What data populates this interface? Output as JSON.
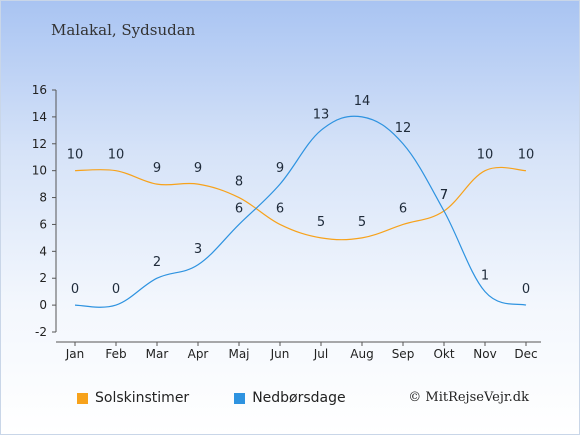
{
  "title": "Malakal, Sydsudan",
  "copyright": "© MitRejseVejr.dk",
  "chart_data": {
    "type": "line",
    "categories": [
      "Jan",
      "Feb",
      "Mar",
      "Apr",
      "Maj",
      "Jun",
      "Jul",
      "Aug",
      "Sep",
      "Okt",
      "Nov",
      "Dec"
    ],
    "ylim": [
      -2,
      16
    ],
    "yticks": [
      -2,
      0,
      2,
      4,
      6,
      8,
      10,
      12,
      14,
      16
    ],
    "series": [
      {
        "name": "Solskinstimer",
        "color": "#f7a21b",
        "values": [
          10,
          10,
          9,
          9,
          8,
          6,
          5,
          5,
          6,
          7,
          10,
          10
        ]
      },
      {
        "name": "Nedbørsdage",
        "color": "#2e93e0",
        "values": [
          0,
          0,
          2,
          3,
          6,
          9,
          13,
          14,
          12,
          7,
          1,
          0
        ]
      }
    ],
    "legend_position": "bottom-left",
    "grid": false
  }
}
